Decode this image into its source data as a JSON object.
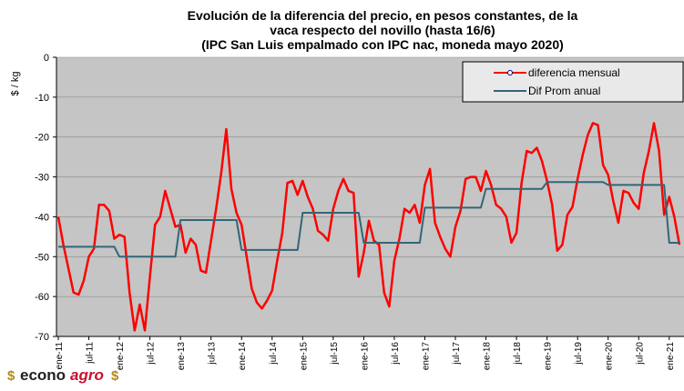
{
  "chart_data": {
    "type": "line",
    "title": [
      "Evolución de la diferencia del precio, en pesos constantes, de la",
      "vaca respecto del novillo (hasta 16/6)",
      "(IPC San Luis empalmado con IPC nac, moneda mayo 2020)"
    ],
    "y_label": "$ / kg",
    "categories": [
      "ene-11",
      null,
      null,
      null,
      null,
      null,
      "jul-11",
      null,
      null,
      null,
      null,
      null,
      "ene-12",
      null,
      null,
      null,
      null,
      null,
      "jul-12",
      null,
      null,
      null,
      null,
      null,
      "ene-13",
      null,
      null,
      null,
      null,
      null,
      "jul-13",
      null,
      null,
      null,
      null,
      null,
      "ene-14",
      null,
      null,
      null,
      null,
      null,
      "jul-14",
      null,
      null,
      null,
      null,
      null,
      "ene-15",
      null,
      null,
      null,
      null,
      null,
      "jul-15",
      null,
      null,
      null,
      null,
      null,
      "ene-16",
      null,
      null,
      null,
      null,
      null,
      "jul-16",
      null,
      null,
      null,
      null,
      null,
      "ene-17",
      null,
      null,
      null,
      null,
      null,
      "jul-17",
      null,
      null,
      null,
      null,
      null,
      "ene-18",
      null,
      null,
      null,
      null,
      null,
      "jul-18",
      null,
      null,
      null,
      null,
      null,
      "ene-19",
      null,
      null,
      null,
      null,
      null,
      "jul-19",
      null,
      null,
      null,
      null,
      null,
      "ene-20",
      null,
      null,
      null,
      null,
      null,
      "jul-20",
      null,
      null,
      null,
      null,
      null,
      "ene-21",
      null,
      null
    ],
    "series": [
      {
        "name": "diferencia mensual",
        "color": "#ff0000",
        "marker": true,
        "values": [
          -40,
          -47,
          -53,
          -59,
          -59.5,
          -56,
          -50,
          -48,
          -37,
          -37,
          -38.5,
          -45.5,
          -44.5,
          -45,
          -59,
          -68.5,
          -62,
          -68.5,
          -55,
          -42,
          -40,
          -33.5,
          -38,
          -42.5,
          -42,
          -49,
          -45.5,
          -47,
          -53.5,
          -54,
          -46,
          -38,
          -29,
          -18,
          -33,
          -39,
          -42,
          -50,
          -58,
          -61.5,
          -63,
          -61,
          -58.5,
          -51,
          -44,
          -31.5,
          -31,
          -34.5,
          -31,
          -35,
          -38,
          -43.5,
          -44.5,
          -46,
          -38,
          -33.5,
          -30.5,
          -33.5,
          -34,
          -55,
          -49,
          -41,
          -46,
          -47,
          -59,
          -62.5,
          -51,
          -45.5,
          -38,
          -39,
          -37,
          -41.5,
          -32,
          -28,
          -41.5,
          -45,
          -48,
          -50,
          -42.5,
          -38.5,
          -30.5,
          -30,
          -30,
          -33.5,
          -28.5,
          -32,
          -37,
          -38,
          -40,
          -46.5,
          -44,
          -31.5,
          -23.5,
          -24,
          -22.7,
          -26,
          -31,
          -37,
          -48.5,
          -47,
          -39.5,
          -37.5,
          -30.5,
          -24.5,
          -19.5,
          -16.5,
          -17,
          -27,
          -29.5,
          -36,
          -41.5,
          -33.5,
          -34,
          -36.5,
          -38,
          -29,
          -23.5,
          -16.5,
          -23.5,
          -39.5,
          -35,
          -40,
          -47
        ]
      },
      {
        "name": "Dif Prom anual",
        "color": "#336677",
        "marker": false,
        "values": [
          -47.5,
          -47.5,
          -47.5,
          -47.5,
          -47.5,
          -47.5,
          -47.5,
          -47.5,
          -47.5,
          -47.5,
          -47.5,
          -47.5,
          -50,
          -50,
          -50,
          -50,
          -50,
          -50,
          -50,
          -50,
          -50,
          -50,
          -50,
          -50,
          -40.8,
          -40.8,
          -40.8,
          -40.8,
          -40.8,
          -40.8,
          -40.8,
          -40.8,
          -40.8,
          -40.8,
          -40.8,
          -40.8,
          -48.3,
          -48.3,
          -48.3,
          -48.3,
          -48.3,
          -48.3,
          -48.3,
          -48.3,
          -48.3,
          -48.3,
          -48.3,
          -48.3,
          -39,
          -39,
          -39,
          -39,
          -39,
          -39,
          -39,
          -39,
          -39,
          -39,
          -39,
          -39,
          -46.5,
          -46.5,
          -46.5,
          -46.5,
          -46.5,
          -46.5,
          -46.5,
          -46.5,
          -46.5,
          -46.5,
          -46.5,
          -46.5,
          -37.7,
          -37.7,
          -37.7,
          -37.7,
          -37.7,
          -37.7,
          -37.7,
          -37.7,
          -37.7,
          -37.7,
          -37.7,
          -37.7,
          -33,
          -33,
          -33,
          -33,
          -33,
          -33,
          -33,
          -33,
          -33,
          -33,
          -33,
          -33,
          -31.3,
          -31.3,
          -31.3,
          -31.3,
          -31.3,
          -31.3,
          -31.3,
          -31.3,
          -31.3,
          -31.3,
          -31.3,
          -31.3,
          -32,
          -32,
          -32,
          -32,
          -32,
          -32,
          -32,
          -32,
          -32,
          -32,
          -32,
          -32,
          -46.5,
          -46.5,
          -46.5
        ]
      }
    ],
    "ylim": [
      -70,
      0
    ],
    "yticks": [
      0,
      -10,
      -20,
      -30,
      -40,
      -50,
      -60,
      -70
    ],
    "grid": true,
    "legend": "top-right",
    "logo": [
      "$",
      "econo",
      "agro",
      "$"
    ]
  }
}
